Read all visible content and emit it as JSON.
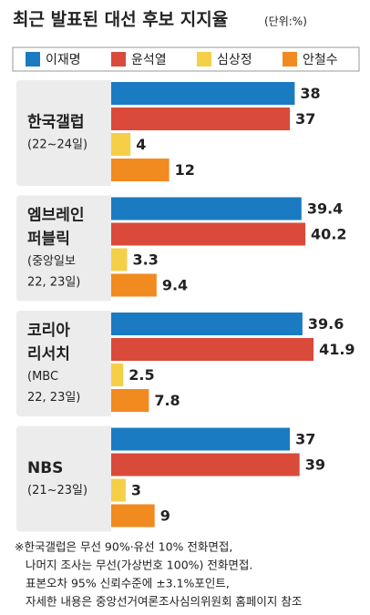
{
  "chart_data": {
    "type": "bar",
    "orientation": "horizontal",
    "title": "최근 발표된 대선 후보 지지율",
    "subtitle": "(단위:%)",
    "categories": [
      {
        "name": [
          "한국갤럽"
        ],
        "note": [
          "(22~24일)"
        ]
      },
      {
        "name": [
          "엠브레인",
          "퍼블릭"
        ],
        "note": [
          "(중앙일보",
          "22, 23일)"
        ]
      },
      {
        "name": [
          "코리아",
          "리서치"
        ],
        "note": [
          "(MBC",
          "22, 23일)"
        ]
      },
      {
        "name": [
          "NBS"
        ],
        "note": [
          "(21~23일)"
        ]
      }
    ],
    "series": [
      {
        "name": "이재명",
        "color": "#1a7bc2",
        "values": [
          38,
          39.4,
          39.6,
          37
        ]
      },
      {
        "name": "윤석열",
        "color": "#d94a3a",
        "values": [
          37,
          40.2,
          41.9,
          39
        ]
      },
      {
        "name": "심상정",
        "color": "#f5cf48",
        "values": [
          4,
          3.3,
          2.5,
          3
        ]
      },
      {
        "name": "안철수",
        "color": "#f18a1f",
        "values": [
          12,
          9.4,
          7.8,
          9
        ]
      }
    ],
    "notes": [
      "※한국갤럽은 무선 90%·유선 10% 전화면접,",
      "나머지 조사는 무선(가상번호 100%) 전화면접.",
      "표본오차 95% 신뢰수준에 ±3.1%포인트,",
      "자세한 내용은 중앙선거여론조사심의위원회 홈페이지 참조"
    ]
  }
}
